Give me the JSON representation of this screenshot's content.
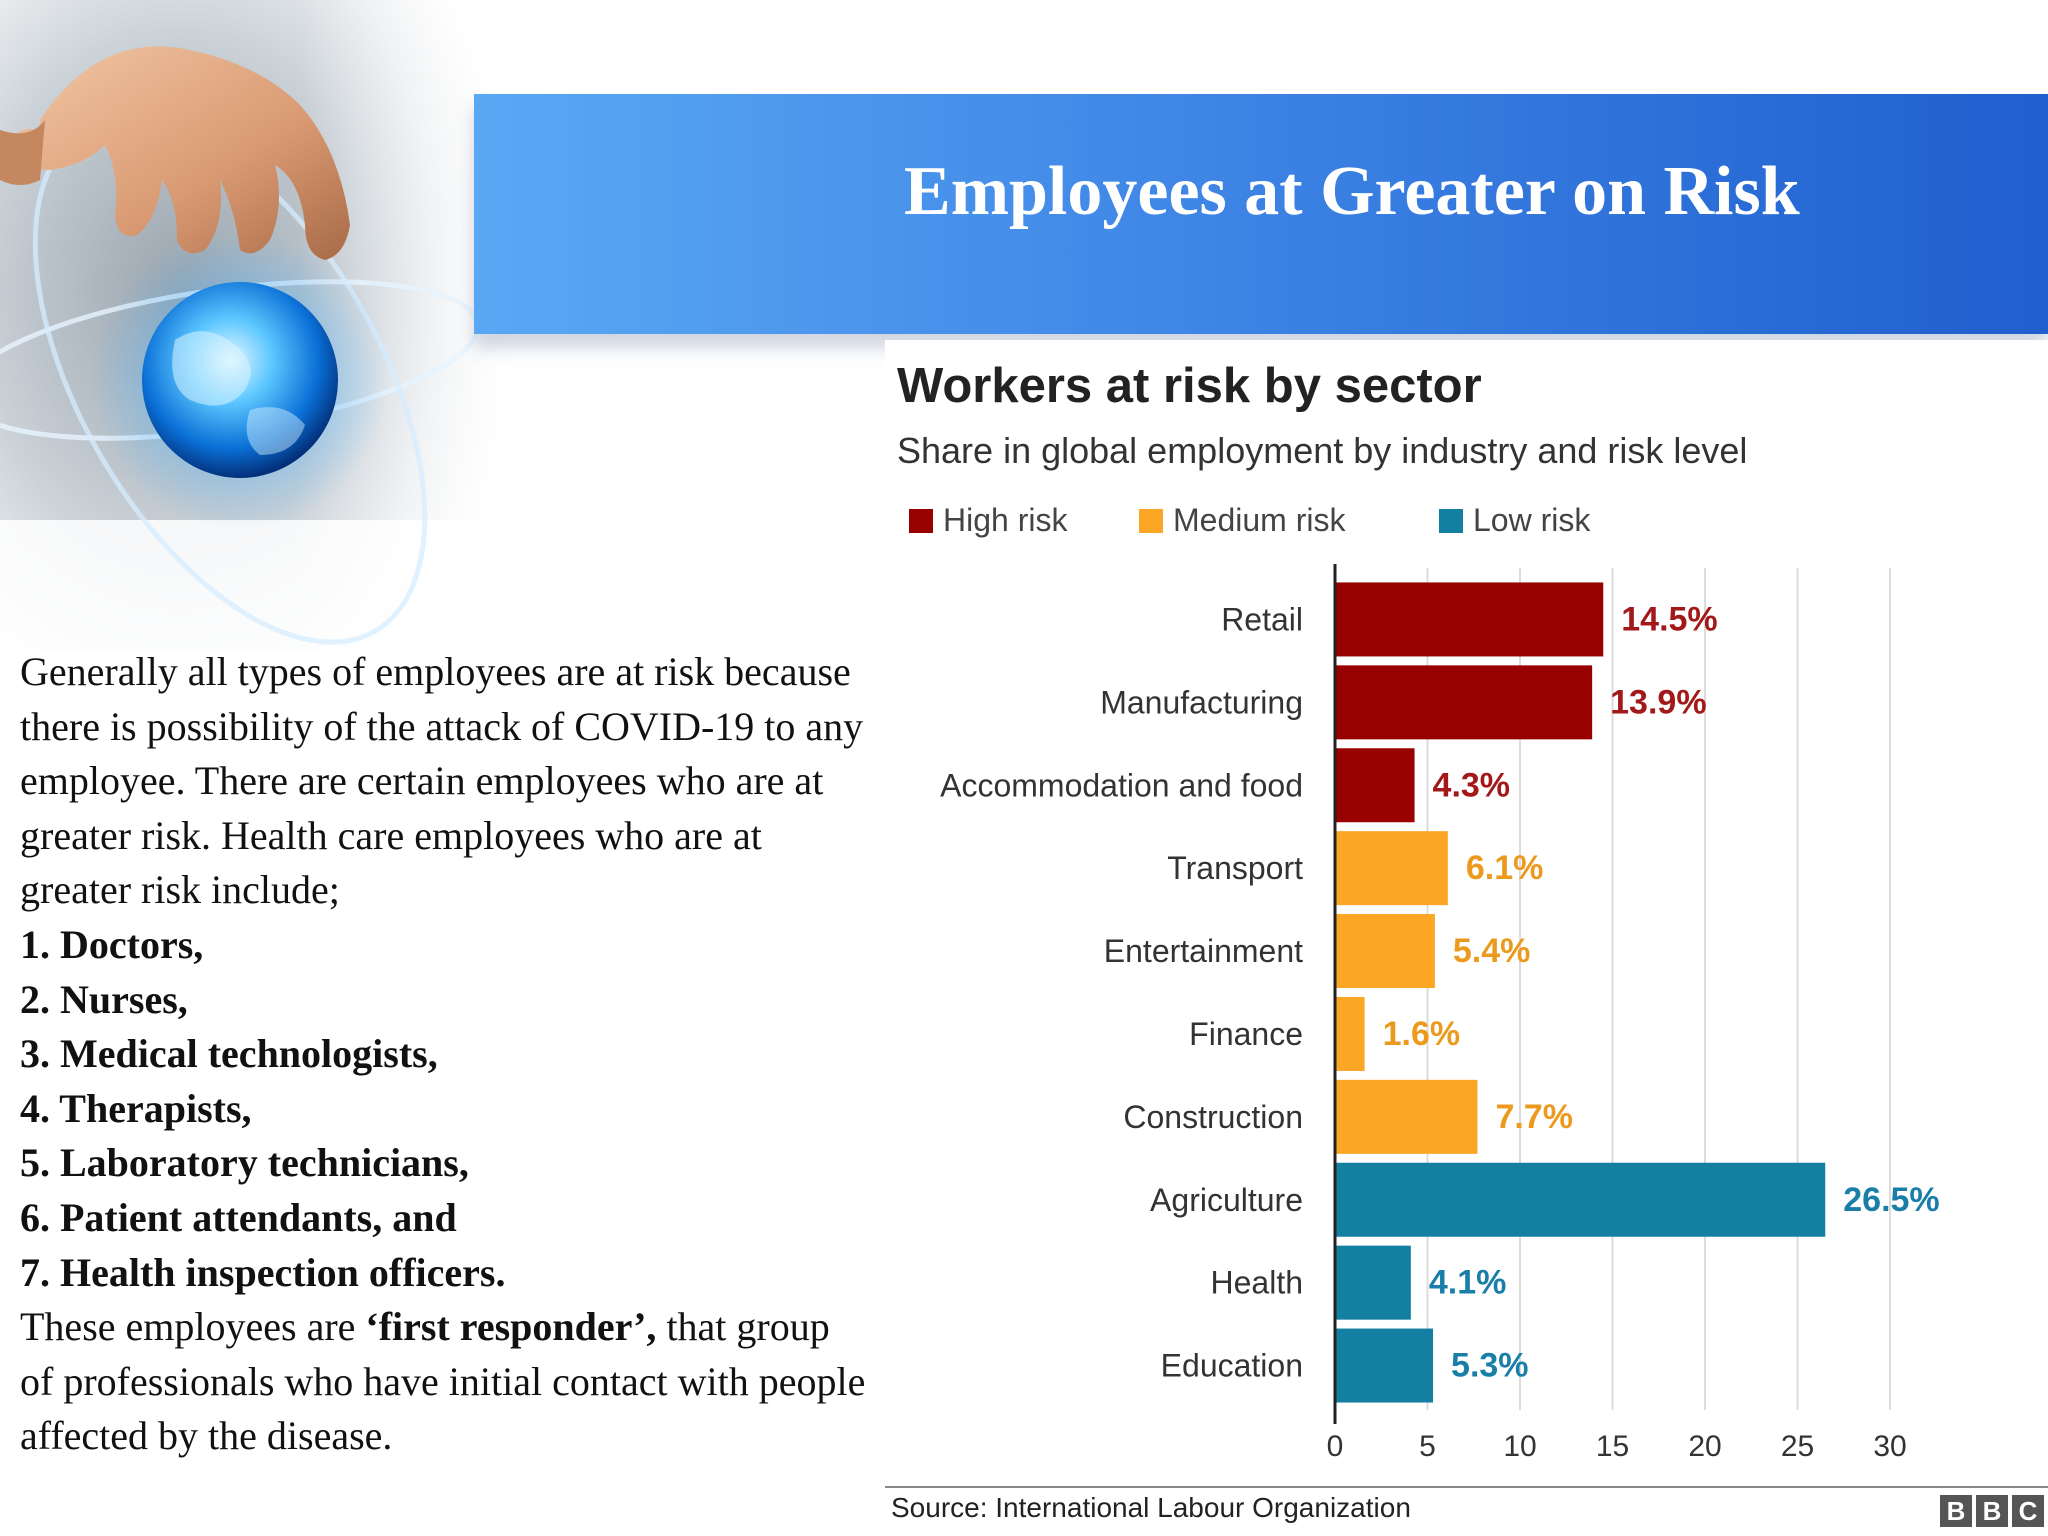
{
  "slide": {
    "title": "Employees at Greater on Risk"
  },
  "body": {
    "intro": "Generally all types of employees are at risk because there is possibility of the attack of COVID-19 to any employee. There are certain employees who are at greater risk. Health care employees who are at greater risk include;",
    "items": [
      "1. Doctors,",
      "2. Nurses,",
      "3. Medical technologists,",
      "4. Therapists,",
      "5. Laboratory technicians,",
      "6. Patient attendants, and",
      "7. Health inspection officers."
    ],
    "outro_before": " These employees are ",
    "outro_bold": "‘first responder’,",
    "outro_after": " that group of professionals who have initial contact with people affected by the disease."
  },
  "chart_data": {
    "type": "bar",
    "orientation": "horizontal",
    "title": "Workers at risk by sector",
    "subtitle": "Share in global employment by industry and risk level",
    "categories": [
      "Retail",
      "Manufacturing",
      "Accommodation and food",
      "Transport",
      "Entertainment",
      "Finance",
      "Construction",
      "Agriculture",
      "Health",
      "Education"
    ],
    "values": [
      14.5,
      13.9,
      4.3,
      6.1,
      5.4,
      1.6,
      7.7,
      26.5,
      4.1,
      5.3
    ],
    "value_labels": [
      "14.5%",
      "13.9%",
      "4.3%",
      "6.1%",
      "5.4%",
      "1.6%",
      "7.7%",
      "26.5%",
      "4.1%",
      "5.3%"
    ],
    "risk_levels": [
      "High risk",
      "High risk",
      "High risk",
      "Medium risk",
      "Medium risk",
      "Medium risk",
      "Medium risk",
      "Low risk",
      "Low risk",
      "Low risk"
    ],
    "legend": [
      {
        "label": "High risk",
        "color": "#990000"
      },
      {
        "label": "Medium risk",
        "color": "#fca625"
      },
      {
        "label": "Low risk",
        "color": "#1380a1"
      }
    ],
    "label_colors": {
      "High risk": "#a31818",
      "Medium risk": "#ec9a1e",
      "Low risk": "#1a7fa8"
    },
    "xlim": [
      0,
      30
    ],
    "xticks": [
      0,
      5,
      10,
      15,
      20,
      25,
      30
    ],
    "grid": true,
    "source": "Source: International Labour Organization",
    "brand": [
      "B",
      "B",
      "C"
    ]
  }
}
